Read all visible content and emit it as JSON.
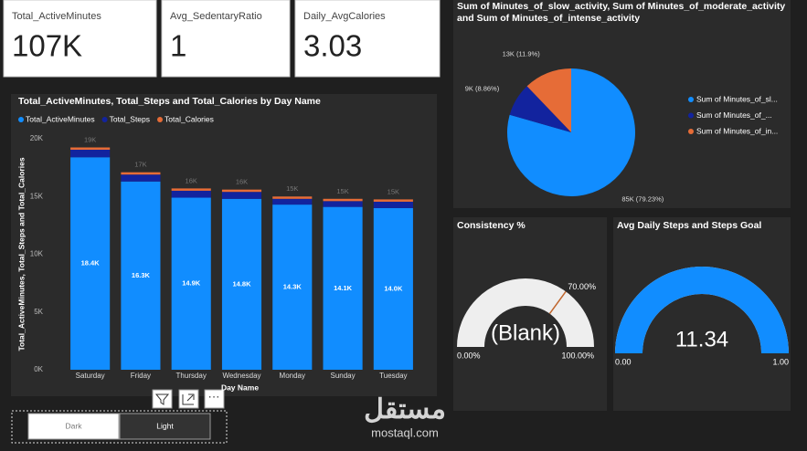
{
  "cards": [
    {
      "label": "Total_ActiveMinutes",
      "value": "107K"
    },
    {
      "label": "Avg_SedentaryRatio",
      "value": "1"
    },
    {
      "label": "Daily_AvgCalories",
      "value": "3.03"
    }
  ],
  "chart_data": [
    {
      "type": "bar",
      "stacked": true,
      "title": "Total_ActiveMinutes, Total_Steps and Total_Calories by Day Name",
      "xlabel": "Day Name",
      "ylabel": "Total_ActiveMinutes, Total_Steps and Total_Calories",
      "categories": [
        "Saturday",
        "Friday",
        "Thursday",
        "Wednesday",
        "Monday",
        "Sunday",
        "Tuesday"
      ],
      "series": [
        {
          "name": "Total_ActiveMinutes",
          "color": "#118dff",
          "values": [
            18400,
            16300,
            14900,
            14800,
            14300,
            14100,
            14000
          ],
          "value_labels": [
            "18.4K",
            "16.3K",
            "14.9K",
            "14.8K",
            "14.3K",
            "14.1K",
            "14.0K"
          ]
        },
        {
          "name": "Total_Steps",
          "color": "#12239e",
          "values": [
            650,
            600,
            600,
            600,
            500,
            500,
            550
          ]
        },
        {
          "name": "Total_Calories",
          "color": "#e66c37",
          "values": [
            200,
            200,
            200,
            200,
            200,
            200,
            200
          ]
        }
      ],
      "total_labels": [
        "19K",
        "17K",
        "16K",
        "16K",
        "15K",
        "15K",
        "15K"
      ],
      "ylim": [
        0,
        20000
      ],
      "yticks": [
        {
          "value": 0,
          "label": "0K"
        },
        {
          "value": 5000,
          "label": "5K"
        },
        {
          "value": 10000,
          "label": "10K"
        },
        {
          "value": 15000,
          "label": "15K"
        },
        {
          "value": 20000,
          "label": "20K"
        }
      ],
      "grid": false,
      "legend": "top-left"
    },
    {
      "type": "pie",
      "title": "Sum of Minutes_of_slow_activity, Sum of Minutes_of_moderate_activity and Sum of Minutes_of_intense_activity",
      "categories": [
        "Sum of Minutes_of_sl...",
        "Sum of Minutes_of_...",
        "Sum of Minutes_of_in..."
      ],
      "colors": [
        "#118dff",
        "#12239e",
        "#e66c37"
      ],
      "values": [
        85000,
        9000,
        13000
      ],
      "value_labels": [
        "85K (79.23%)",
        "9K (8.86%)",
        "13K (11.9%)"
      ],
      "legend": "right"
    },
    {
      "type": "gauge",
      "title": "Consistency %",
      "value": null,
      "value_label": "(Blank)",
      "target": 70,
      "target_label": "70.00%",
      "min": {
        "value": 0,
        "label": "0.00%"
      },
      "max": {
        "value": 100,
        "label": "100.00%"
      },
      "color": "#118dff",
      "track_color": "#eeeeee",
      "target_color": "#c0652c"
    },
    {
      "type": "gauge",
      "title": "Avg Daily Steps and Steps Goal",
      "value": 11.34,
      "min": {
        "value": 0,
        "label": "0.00"
      },
      "max": {
        "value": 1,
        "label": "1.00"
      },
      "color": "#118dff",
      "track_color": "#eeeeee"
    }
  ],
  "slicer": {
    "options": [
      "Dark",
      "Light"
    ],
    "selected": 1
  },
  "watermark": {
    "arabic": "مستقل",
    "latin": "mostaql.com"
  }
}
